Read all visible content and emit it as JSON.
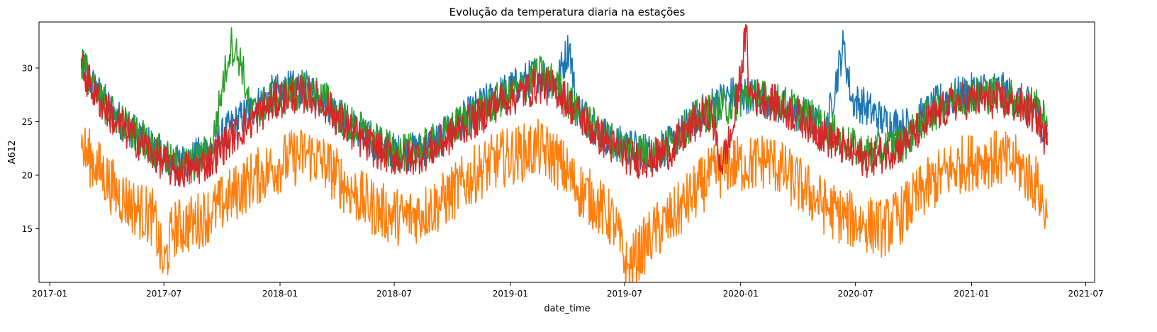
{
  "chart_data": {
    "type": "line",
    "title": "Evolução da temperatura diaria na estações",
    "xlabel": "date_time",
    "ylabel": "A612",
    "x_range": [
      "2016-12-15",
      "2021-07-15"
    ],
    "y_range": [
      10.0,
      34.3
    ],
    "x_ticks": [
      "2017-01",
      "2017-07",
      "2018-01",
      "2018-07",
      "2019-01",
      "2019-07",
      "2020-01",
      "2020-07",
      "2021-01",
      "2021-07"
    ],
    "y_ticks": [
      15,
      20,
      25,
      30
    ],
    "grid": false,
    "series": [
      {
        "color": "#1f77b4",
        "x": [
          "2017-02-20",
          "2017-03-15",
          "2017-04-15",
          "2017-05-15",
          "2017-06-15",
          "2017-07-15",
          "2017-08-15",
          "2017-09-15",
          "2017-10-15",
          "2017-11-15",
          "2017-12-15",
          "2018-01-15",
          "2018-02-15",
          "2018-03-15",
          "2018-04-15",
          "2018-05-15",
          "2018-06-15",
          "2018-07-15",
          "2018-08-15",
          "2018-09-15",
          "2018-10-15",
          "2018-11-15",
          "2018-12-15",
          "2019-01-15",
          "2019-02-15",
          "2019-03-15",
          "2019-04-05",
          "2019-04-15",
          "2019-05-15",
          "2019-06-15",
          "2019-07-15",
          "2019-08-15",
          "2019-09-15",
          "2019-10-15",
          "2019-11-15",
          "2019-12-15",
          "2020-01-15",
          "2020-02-15",
          "2020-03-15",
          "2020-04-15",
          "2020-05-15",
          "2020-06-12",
          "2020-06-25",
          "2020-07-15",
          "2020-08-15",
          "2020-09-15",
          "2020-10-15",
          "2020-11-15",
          "2020-12-15",
          "2021-01-15",
          "2021-02-15",
          "2021-03-15",
          "2021-04-15",
          "2021-05-01"
        ],
        "values": [
          30.2,
          28.0,
          25.5,
          24.0,
          22.5,
          21.0,
          21.5,
          22.5,
          24.5,
          26.0,
          27.5,
          28.0,
          28.0,
          27.0,
          25.0,
          23.5,
          22.5,
          22.0,
          22.5,
          23.5,
          25.0,
          26.5,
          27.5,
          28.5,
          29.5,
          28.5,
          32.2,
          26.5,
          24.5,
          23.0,
          22.5,
          22.0,
          23.0,
          25.0,
          26.5,
          27.5,
          27.5,
          27.0,
          26.0,
          25.5,
          24.0,
          32.2,
          27.0,
          26.5,
          25.0,
          24.5,
          25.5,
          27.0,
          27.5,
          28.0,
          28.0,
          27.0,
          26.0,
          24.0
        ]
      },
      {
        "color": "#ff7f0e",
        "x": [
          "2017-02-20",
          "2017-03-15",
          "2017-04-15",
          "2017-05-15",
          "2017-06-15",
          "2017-07-01",
          "2017-07-15",
          "2017-08-15",
          "2017-09-15",
          "2017-10-15",
          "2017-11-15",
          "2017-12-15",
          "2018-01-15",
          "2018-02-15",
          "2018-03-15",
          "2018-04-15",
          "2018-05-15",
          "2018-06-15",
          "2018-07-15",
          "2018-08-15",
          "2018-09-15",
          "2018-10-15",
          "2018-11-15",
          "2018-12-15",
          "2019-01-15",
          "2019-02-15",
          "2019-03-15",
          "2019-04-15",
          "2019-05-15",
          "2019-06-15",
          "2019-07-05",
          "2019-08-15",
          "2019-09-15",
          "2019-10-15",
          "2019-11-15",
          "2019-12-15",
          "2020-01-15",
          "2020-02-15",
          "2020-03-15",
          "2020-04-15",
          "2020-05-15",
          "2020-06-15",
          "2020-07-15",
          "2020-08-15",
          "2020-09-15",
          "2020-10-15",
          "2020-11-15",
          "2020-12-15",
          "2021-01-15",
          "2021-02-15",
          "2021-03-15",
          "2021-04-15",
          "2021-05-01"
        ],
        "values": [
          22.5,
          21.0,
          18.5,
          17.0,
          16.0,
          11.3,
          15.0,
          15.5,
          16.5,
          18.0,
          19.5,
          20.5,
          21.5,
          22.0,
          21.0,
          19.0,
          17.5,
          16.5,
          16.0,
          16.5,
          17.5,
          19.0,
          20.5,
          21.5,
          22.0,
          22.5,
          21.5,
          19.0,
          17.5,
          15.5,
          11.2,
          14.5,
          16.0,
          18.0,
          20.0,
          21.0,
          21.0,
          21.5,
          20.0,
          18.5,
          17.0,
          16.0,
          15.5,
          15.0,
          16.5,
          18.5,
          20.0,
          21.0,
          21.5,
          21.5,
          21.0,
          19.0,
          16.0
        ]
      },
      {
        "color": "#2ca02c",
        "x": [
          "2017-02-20",
          "2017-03-15",
          "2017-04-15",
          "2017-05-15",
          "2017-06-15",
          "2017-07-15",
          "2017-08-15",
          "2017-09-15",
          "2017-10-01",
          "2017-10-15",
          "2017-11-01",
          "2017-11-15",
          "2017-12-15",
          "2018-01-15",
          "2018-02-15",
          "2018-03-15",
          "2018-04-15",
          "2018-05-15",
          "2018-06-15",
          "2018-07-15",
          "2018-08-15",
          "2018-09-15",
          "2018-10-15",
          "2018-11-15",
          "2018-12-15",
          "2019-01-15",
          "2019-02-15",
          "2019-03-15",
          "2019-04-15",
          "2019-05-15",
          "2019-06-15",
          "2019-07-15",
          "2019-08-15",
          "2019-09-15",
          "2019-10-15",
          "2019-11-15",
          "2019-12-15",
          "2020-01-15",
          "2020-02-15",
          "2020-03-15",
          "2020-04-15",
          "2020-05-15",
          "2020-06-15",
          "2020-07-15",
          "2020-08-15",
          "2020-09-15",
          "2020-10-15",
          "2020-11-15",
          "2020-12-15",
          "2021-01-15",
          "2021-02-15",
          "2021-03-15",
          "2021-04-15",
          "2021-05-01"
        ],
        "values": [
          30.9,
          27.5,
          25.5,
          24.0,
          22.5,
          21.0,
          21.0,
          22.5,
          28.0,
          32.3,
          30.5,
          25.5,
          27.0,
          27.5,
          28.0,
          27.0,
          25.0,
          24.0,
          22.5,
          22.0,
          22.5,
          23.5,
          25.0,
          26.0,
          27.0,
          28.0,
          29.5,
          28.5,
          26.0,
          24.5,
          23.0,
          22.5,
          22.0,
          23.0,
          25.0,
          26.0,
          26.5,
          27.5,
          27.0,
          26.5,
          25.5,
          24.5,
          23.0,
          22.0,
          22.5,
          23.0,
          25.0,
          26.5,
          27.5,
          27.5,
          27.5,
          27.0,
          26.5,
          24.5
        ]
      },
      {
        "color": "#d62728",
        "x": [
          "2017-02-20",
          "2017-03-15",
          "2017-04-15",
          "2017-05-15",
          "2017-06-15",
          "2017-07-15",
          "2017-08-15",
          "2017-09-15",
          "2017-10-15",
          "2017-11-15",
          "2017-12-15",
          "2018-01-15",
          "2018-02-15",
          "2018-03-15",
          "2018-04-15",
          "2018-05-15",
          "2018-06-15",
          "2018-07-15",
          "2018-08-15",
          "2018-09-15",
          "2018-10-15",
          "2018-11-15",
          "2018-12-15",
          "2019-01-15",
          "2019-02-15",
          "2019-03-15",
          "2019-04-15",
          "2019-05-15",
          "2019-06-15",
          "2019-07-15",
          "2019-08-15",
          "2019-09-15",
          "2019-10-15",
          "2019-11-15",
          "2019-12-01",
          "2019-12-20",
          "2020-01-10",
          "2020-01-15",
          "2020-02-15",
          "2020-03-15",
          "2020-04-15",
          "2020-05-15",
          "2020-06-15",
          "2020-07-15",
          "2020-08-15",
          "2020-09-15",
          "2020-10-15",
          "2020-11-15",
          "2020-12-15",
          "2021-01-15",
          "2021-02-15",
          "2021-03-15",
          "2021-04-15",
          "2021-05-01"
        ],
        "values": [
          30.0,
          27.5,
          25.0,
          23.5,
          22.0,
          20.5,
          20.5,
          21.5,
          23.5,
          25.0,
          26.5,
          27.5,
          27.5,
          26.5,
          24.5,
          23.0,
          22.0,
          21.5,
          22.0,
          23.0,
          24.5,
          25.5,
          27.0,
          27.5,
          28.5,
          28.0,
          26.0,
          24.0,
          22.5,
          21.5,
          21.5,
          22.5,
          24.5,
          26.0,
          20.9,
          24.2,
          33.4,
          27.5,
          27.0,
          26.0,
          25.0,
          23.5,
          22.5,
          21.5,
          22.0,
          23.0,
          24.5,
          26.0,
          27.0,
          27.0,
          27.0,
          26.5,
          25.5,
          22.8
        ]
      }
    ]
  }
}
